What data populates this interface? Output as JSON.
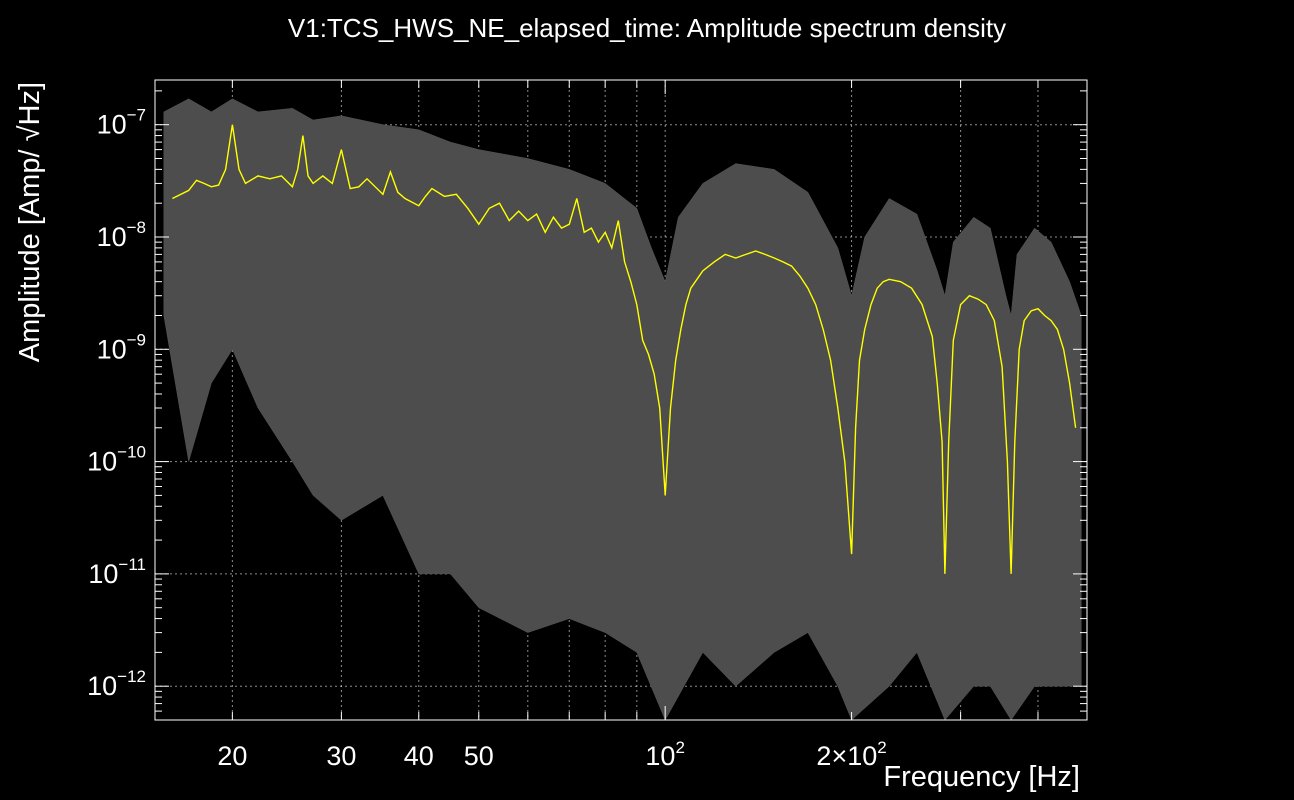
{
  "chart_data": {
    "type": "line",
    "title": "V1:TCS_HWS_NE_elapsed_time: Amplitude spectrum density",
    "xlabel": "Frequency [Hz]",
    "ylabel": "Amplitude [Amp/ √Hz]",
    "x_scale": "log",
    "y_scale": "log",
    "xlim": [
      15,
      480
    ],
    "ylim": [
      5e-13,
      2.5e-07
    ],
    "grid": true,
    "x_ticks": [
      {
        "value": 20,
        "label": "20"
      },
      {
        "value": 30,
        "label": "30"
      },
      {
        "value": 40,
        "label": "40"
      },
      {
        "value": 50,
        "label": "50"
      },
      {
        "value": 100,
        "label": "10",
        "exp": "2"
      },
      {
        "value": 200,
        "label": "2×10",
        "exp": "2"
      }
    ],
    "y_ticks": [
      {
        "value": 1e-07,
        "label": "10",
        "exp": "−7"
      },
      {
        "value": 1e-08,
        "label": "10",
        "exp": "−8"
      },
      {
        "value": 1e-09,
        "label": "10",
        "exp": "−9"
      },
      {
        "value": 1e-10,
        "label": "10",
        "exp": "−10"
      },
      {
        "value": 1e-11,
        "label": "10",
        "exp": "−11"
      },
      {
        "value": 1e-12,
        "label": "10",
        "exp": "−12"
      }
    ],
    "series": [
      {
        "color": "#4d4d4d",
        "style": "band",
        "upper": [
          [
            15.5,
            1.3e-07
          ],
          [
            17,
            1.7e-07
          ],
          [
            18.5,
            1.3e-07
          ],
          [
            20,
            1.7e-07
          ],
          [
            22,
            1.3e-07
          ],
          [
            25,
            1.4e-07
          ],
          [
            27,
            1.1e-07
          ],
          [
            30,
            1.2e-07
          ],
          [
            35,
            1e-07
          ],
          [
            40,
            9e-08
          ],
          [
            45,
            7e-08
          ],
          [
            50,
            6e-08
          ],
          [
            60,
            5e-08
          ],
          [
            70,
            4e-08
          ],
          [
            80,
            3e-08
          ],
          [
            90,
            1.8e-08
          ],
          [
            95,
            8e-09
          ],
          [
            100,
            4e-09
          ],
          [
            105,
            1.5e-08
          ],
          [
            115,
            3e-08
          ],
          [
            130,
            4.5e-08
          ],
          [
            150,
            4e-08
          ],
          [
            170,
            2.5e-08
          ],
          [
            190,
            8e-09
          ],
          [
            200,
            3e-09
          ],
          [
            210,
            1e-08
          ],
          [
            230,
            2.2e-08
          ],
          [
            255,
            1.6e-08
          ],
          [
            275,
            5e-09
          ],
          [
            283,
            3e-09
          ],
          [
            292,
            9e-09
          ],
          [
            315,
            1.5e-08
          ],
          [
            335,
            1.2e-08
          ],
          [
            355,
            3e-09
          ],
          [
            362,
            2e-09
          ],
          [
            370,
            7e-09
          ],
          [
            395,
            1.2e-08
          ],
          [
            420,
            9e-09
          ],
          [
            450,
            4e-09
          ],
          [
            470,
            2e-09
          ]
        ],
        "lower": [
          [
            15.5,
            2e-09
          ],
          [
            17,
            1e-10
          ],
          [
            18.5,
            5e-10
          ],
          [
            20,
            1e-09
          ],
          [
            22,
            3e-10
          ],
          [
            25,
            1e-10
          ],
          [
            27,
            5e-11
          ],
          [
            30,
            3e-11
          ],
          [
            35,
            5e-11
          ],
          [
            40,
            1e-11
          ],
          [
            45,
            1e-11
          ],
          [
            50,
            5e-12
          ],
          [
            60,
            3e-12
          ],
          [
            70,
            4e-12
          ],
          [
            80,
            3e-12
          ],
          [
            90,
            2e-12
          ],
          [
            100,
            5e-13
          ],
          [
            115,
            2e-12
          ],
          [
            130,
            1e-12
          ],
          [
            150,
            2e-12
          ],
          [
            170,
            3e-12
          ],
          [
            190,
            1e-12
          ],
          [
            200,
            5e-13
          ],
          [
            230,
            1e-12
          ],
          [
            255,
            2e-12
          ],
          [
            283,
            5e-13
          ],
          [
            315,
            1e-12
          ],
          [
            335,
            1e-12
          ],
          [
            362,
            5e-13
          ],
          [
            395,
            1e-12
          ],
          [
            420,
            1e-12
          ],
          [
            470,
            1e-12
          ]
        ]
      },
      {
        "color": "#ffff00",
        "style": "line",
        "points": [
          [
            16,
            2.2e-08
          ],
          [
            17,
            2.6e-08
          ],
          [
            17.5,
            3.2e-08
          ],
          [
            18,
            3e-08
          ],
          [
            18.5,
            2.8e-08
          ],
          [
            19,
            2.9e-08
          ],
          [
            19.5,
            4e-08
          ],
          [
            20,
            1e-07
          ],
          [
            20.5,
            4e-08
          ],
          [
            21,
            3e-08
          ],
          [
            22,
            3.5e-08
          ],
          [
            23,
            3.3e-08
          ],
          [
            24,
            3.5e-08
          ],
          [
            25,
            2.8e-08
          ],
          [
            25.5,
            4e-08
          ],
          [
            26,
            8e-08
          ],
          [
            26.5,
            3.5e-08
          ],
          [
            27,
            3e-08
          ],
          [
            28,
            3.5e-08
          ],
          [
            29,
            3e-08
          ],
          [
            30,
            6e-08
          ],
          [
            31,
            2.7e-08
          ],
          [
            32,
            2.8e-08
          ],
          [
            33,
            3.3e-08
          ],
          [
            35,
            2.4e-08
          ],
          [
            36,
            3.8e-08
          ],
          [
            37,
            2.5e-08
          ],
          [
            38,
            2.2e-08
          ],
          [
            40,
            1.9e-08
          ],
          [
            41,
            2.3e-08
          ],
          [
            42,
            2.7e-08
          ],
          [
            44,
            2.3e-08
          ],
          [
            46,
            2.4e-08
          ],
          [
            48,
            1.8e-08
          ],
          [
            50,
            1.3e-08
          ],
          [
            52,
            1.8e-08
          ],
          [
            54,
            2e-08
          ],
          [
            56,
            1.4e-08
          ],
          [
            58,
            1.7e-08
          ],
          [
            60,
            1.4e-08
          ],
          [
            62,
            1.6e-08
          ],
          [
            64,
            1.1e-08
          ],
          [
            66,
            1.5e-08
          ],
          [
            68,
            1.2e-08
          ],
          [
            70,
            1.3e-08
          ],
          [
            72,
            2.2e-08
          ],
          [
            74,
            1.1e-08
          ],
          [
            76,
            1.2e-08
          ],
          [
            78,
            9e-09
          ],
          [
            80,
            1.1e-08
          ],
          [
            82,
            8e-09
          ],
          [
            84,
            1.4e-08
          ],
          [
            86,
            6e-09
          ],
          [
            88,
            4e-09
          ],
          [
            90,
            2.5e-09
          ],
          [
            92,
            1.2e-09
          ],
          [
            94,
            9e-10
          ],
          [
            96,
            6e-10
          ],
          [
            98,
            3e-10
          ],
          [
            100,
            5e-11
          ],
          [
            102,
            3e-10
          ],
          [
            104,
            8e-10
          ],
          [
            106,
            1.5e-09
          ],
          [
            108,
            2.5e-09
          ],
          [
            110,
            3.5e-09
          ],
          [
            115,
            5e-09
          ],
          [
            120,
            6e-09
          ],
          [
            125,
            7e-09
          ],
          [
            130,
            6.5e-09
          ],
          [
            135,
            7e-09
          ],
          [
            140,
            7.5e-09
          ],
          [
            145,
            7e-09
          ],
          [
            150,
            6.5e-09
          ],
          [
            155,
            6e-09
          ],
          [
            160,
            5.5e-09
          ],
          [
            165,
            4.5e-09
          ],
          [
            170,
            3.5e-09
          ],
          [
            175,
            2.5e-09
          ],
          [
            180,
            1.5e-09
          ],
          [
            185,
            8e-10
          ],
          [
            190,
            3e-10
          ],
          [
            195,
            1e-10
          ],
          [
            200,
            1.5e-11
          ],
          [
            203,
            2e-10
          ],
          [
            206,
            8e-10
          ],
          [
            210,
            1.5e-09
          ],
          [
            215,
            2.5e-09
          ],
          [
            220,
            3.5e-09
          ],
          [
            225,
            4e-09
          ],
          [
            230,
            4.2e-09
          ],
          [
            240,
            4e-09
          ],
          [
            250,
            3.5e-09
          ],
          [
            260,
            2.5e-09
          ],
          [
            270,
            1.3e-09
          ],
          [
            275,
            5e-10
          ],
          [
            280,
            1.5e-10
          ],
          [
            283,
            1e-11
          ],
          [
            287,
            1.5e-10
          ],
          [
            292,
            1.2e-09
          ],
          [
            300,
            2.5e-09
          ],
          [
            310,
            3e-09
          ],
          [
            320,
            2.8e-09
          ],
          [
            330,
            2.5e-09
          ],
          [
            340,
            1.8e-09
          ],
          [
            350,
            7e-10
          ],
          [
            357,
            1e-10
          ],
          [
            362,
            1e-11
          ],
          [
            367,
            1.5e-10
          ],
          [
            373,
            1e-09
          ],
          [
            380,
            1.8e-09
          ],
          [
            390,
            2.2e-09
          ],
          [
            400,
            2.3e-09
          ],
          [
            410,
            2e-09
          ],
          [
            420,
            1.8e-09
          ],
          [
            430,
            1.5e-09
          ],
          [
            440,
            1e-09
          ],
          [
            450,
            5e-10
          ],
          [
            460,
            2e-10
          ]
        ]
      }
    ]
  }
}
